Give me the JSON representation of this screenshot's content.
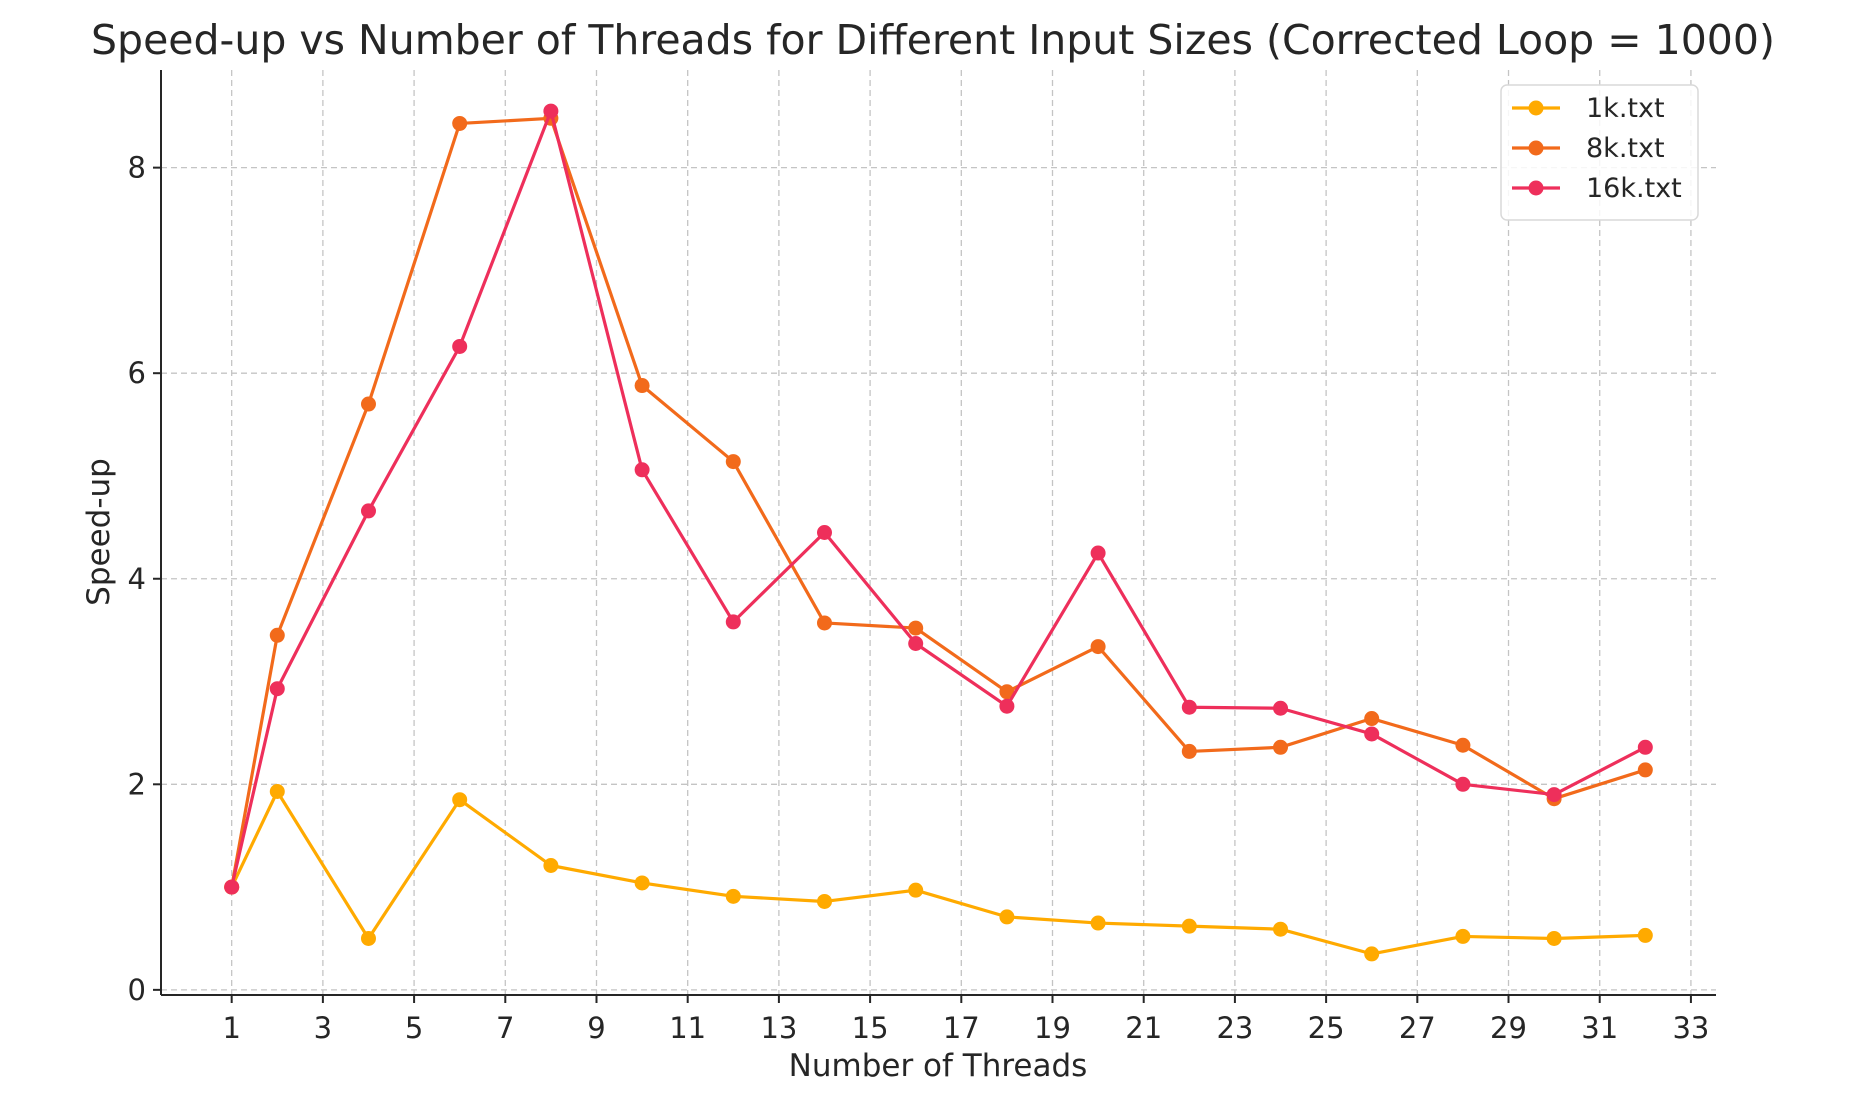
{
  "chart_data": {
    "type": "line",
    "title": "Speed-up vs Number of Threads for Different Input Sizes (Corrected Loop = 1000)",
    "xlabel": "Number of Threads",
    "ylabel": "Speed-up",
    "xlim": [
      -0.55,
      33.55
    ],
    "ylim": [
      -0.05,
      8.95
    ],
    "x_ticks": [
      1,
      3,
      5,
      7,
      9,
      11,
      13,
      15,
      17,
      19,
      21,
      23,
      25,
      27,
      29,
      31,
      33
    ],
    "y_ticks": [
      0,
      2,
      4,
      6,
      8
    ],
    "grid": true,
    "legend_position": "top-right",
    "x": [
      1,
      2,
      4,
      6,
      8,
      10,
      12,
      14,
      16,
      18,
      20,
      22,
      24,
      26,
      28,
      30,
      32
    ],
    "series": [
      {
        "name": "1k.txt",
        "color": "#FFAA00",
        "values": [
          1.0,
          1.93,
          0.5,
          1.85,
          1.21,
          1.04,
          0.91,
          0.86,
          0.97,
          0.71,
          0.65,
          0.62,
          0.59,
          0.35,
          0.52,
          0.5,
          0.53
        ]
      },
      {
        "name": "8k.txt",
        "color": "#F26A1B",
        "values": [
          1.0,
          3.45,
          5.7,
          8.43,
          8.48,
          5.88,
          5.14,
          3.57,
          3.52,
          2.9,
          3.34,
          2.32,
          2.36,
          2.64,
          2.38,
          1.86,
          2.14
        ]
      },
      {
        "name": "16k.txt",
        "color": "#EE2F5B",
        "values": [
          1.0,
          2.93,
          4.66,
          6.26,
          8.55,
          5.06,
          3.58,
          4.45,
          3.37,
          2.76,
          4.25,
          2.75,
          2.74,
          2.49,
          2.0,
          1.9,
          2.36
        ]
      }
    ]
  }
}
